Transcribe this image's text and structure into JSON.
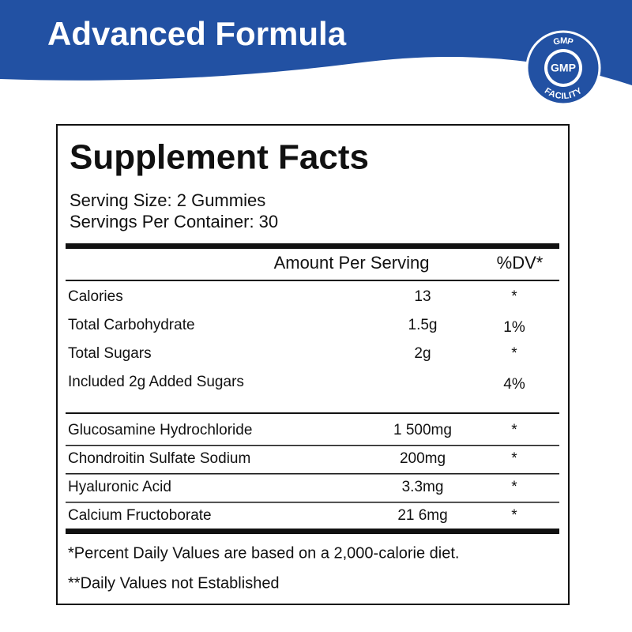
{
  "header": {
    "title": "Advanced Formula",
    "badge": {
      "top": "GMP",
      "center": "GMP",
      "bottom": "FACILITY"
    }
  },
  "facts": {
    "title": "Supplement Facts",
    "serving_size": "Serving Size: 2 Gummies",
    "servings_per_container": "Servings Per Container: 30",
    "columns": [
      "Amount Per Serving",
      "%DV*"
    ],
    "groups": [
      [
        [
          "Calories",
          "13",
          "*"
        ],
        [
          "Total Carbohydrate",
          "1.5g",
          "1%"
        ],
        [
          "Total Sugars",
          "2g",
          "*"
        ],
        [
          "Included 2g Added Sugars",
          null,
          "4%"
        ]
      ],
      [
        [
          "Glucosamine Hydrochloride",
          "1 500mg",
          "*"
        ],
        [
          "Chondroitin Sulfate Sodium",
          "200mg",
          "*"
        ],
        [
          "Hyaluronic Acid",
          "3.3mg",
          "*"
        ],
        [
          "Calcium Fructoborate",
          "21 6mg",
          "*"
        ]
      ]
    ],
    "footnotes": [
      "*Percent Daily Values are based on a 2,000-calorie diet.",
      "**Daily Values not Established"
    ]
  }
}
